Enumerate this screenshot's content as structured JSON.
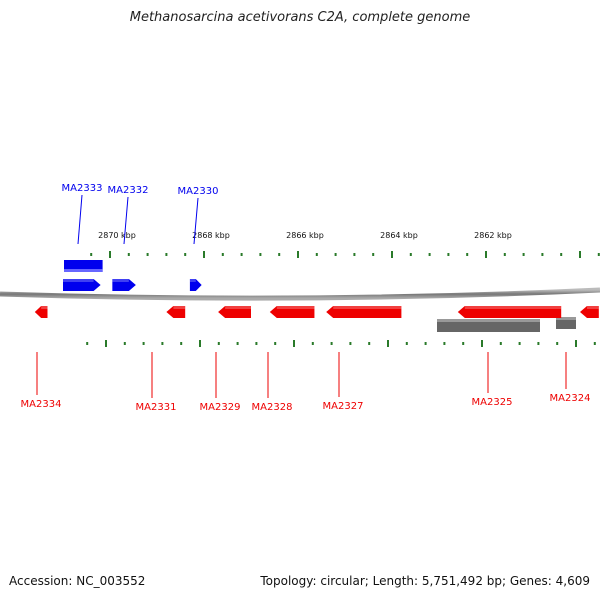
{
  "title": "Methanosarcina acetivorans C2A, complete genome",
  "footer": {
    "accession": "Accession: NC_003552",
    "summary": "Topology: circular; Length: 5,751,492 bp; Genes: 4,609"
  },
  "colors": {
    "forward": "#0000ee",
    "reverse": "#ee0000",
    "gray": "#666666",
    "tick": "#2a7a2a",
    "backbone": "#888888"
  },
  "kbp_labels": [
    {
      "kbp": 2870,
      "label": "2870 kbp"
    },
    {
      "kbp": 2868,
      "label": "2868 kbp"
    },
    {
      "kbp": 2866,
      "label": "2866 kbp"
    },
    {
      "kbp": 2864,
      "label": "2864 kbp"
    },
    {
      "kbp": 2862,
      "label": "2862 kbp"
    }
  ],
  "genes": [
    {
      "id": "MA2334",
      "strand": "-",
      "start_kbp": 2871.6,
      "end_kbp": 2871.33
    },
    {
      "id": "MA2333",
      "strand": "+",
      "start_kbp": 2871.0,
      "end_kbp": 2870.2
    },
    {
      "id": "MA2332",
      "strand": "+",
      "start_kbp": 2869.95,
      "end_kbp": 2869.45
    },
    {
      "id": "MA2331",
      "strand": "-",
      "start_kbp": 2868.8,
      "end_kbp": 2868.4
    },
    {
      "id": "MA2330",
      "strand": "+",
      "start_kbp": 2868.3,
      "end_kbp": 2868.05
    },
    {
      "id": "MA2329",
      "strand": "-",
      "start_kbp": 2867.7,
      "end_kbp": 2867.0
    },
    {
      "id": "MA2328",
      "strand": "-",
      "start_kbp": 2866.6,
      "end_kbp": 2865.65
    },
    {
      "id": "MA2327",
      "strand": "-",
      "start_kbp": 2865.4,
      "end_kbp": 2863.8
    },
    {
      "id": "MA2325",
      "strand": "-",
      "start_kbp": 2862.6,
      "end_kbp": 2860.4
    },
    {
      "id": "MA2324",
      "strand": "-",
      "start_kbp": 2860.0,
      "end_kbp": 2859.6
    }
  ]
}
